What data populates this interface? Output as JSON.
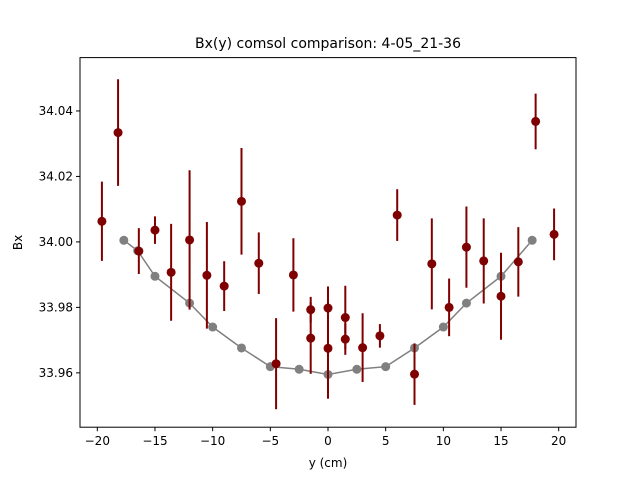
{
  "chart_data": {
    "type": "scatter",
    "title": "Bx(y) comsol comparison: 4-05_21-36",
    "xlabel": "y (cm)",
    "ylabel": "Bx",
    "xlim": [
      -21.5,
      21.5
    ],
    "ylim": [
      33.9434,
      34.0563
    ],
    "x_ticks": [
      -20,
      -15,
      -10,
      -5,
      0,
      5,
      10,
      15,
      20
    ],
    "x_tick_labels": [
      "−20",
      "−15",
      "−10",
      "−5",
      "0",
      "5",
      "10",
      "15",
      "20"
    ],
    "y_ticks": [
      33.96,
      33.98,
      34.0,
      34.02,
      34.04
    ],
    "y_tick_labels": [
      "33.96",
      "33.98",
      "34.00",
      "34.02",
      "34.04"
    ],
    "grid": false,
    "legend": "none",
    "series": [
      {
        "kind": "line-markers",
        "color": "#808080",
        "points": [
          {
            "x": -17.7,
            "y": 34.0005
          },
          {
            "x": -16.5,
            "y": 33.9973
          },
          {
            "x": -15.0,
            "y": 33.9895
          },
          {
            "x": -12.0,
            "y": 33.9813
          },
          {
            "x": -10.0,
            "y": 33.974
          },
          {
            "x": -7.5,
            "y": 33.9676
          },
          {
            "x": -5.0,
            "y": 33.9619
          },
          {
            "x": -2.5,
            "y": 33.9611
          },
          {
            "x": 0.0,
            "y": 33.9595
          },
          {
            "x": 2.5,
            "y": 33.9611
          },
          {
            "x": 5.0,
            "y": 33.9619
          },
          {
            "x": 7.5,
            "y": 33.9676
          },
          {
            "x": 10.0,
            "y": 33.974
          },
          {
            "x": 12.0,
            "y": 33.9813
          },
          {
            "x": 15.0,
            "y": 33.9895
          },
          {
            "x": 17.7,
            "y": 34.0005
          }
        ]
      },
      {
        "kind": "errorbar",
        "color": "#7f0000",
        "points": [
          {
            "x": -19.6,
            "y": 34.0063,
            "err": 0.0121
          },
          {
            "x": -18.2,
            "y": 34.0334,
            "err": 0.0163
          },
          {
            "x": -16.4,
            "y": 33.9972,
            "err": 0.007
          },
          {
            "x": -15.0,
            "y": 34.0036,
            "err": 0.0042
          },
          {
            "x": -13.6,
            "y": 33.9907,
            "err": 0.0148
          },
          {
            "x": -12.0,
            "y": 34.0006,
            "err": 0.0213
          },
          {
            "x": -10.5,
            "y": 33.9898,
            "err": 0.0163
          },
          {
            "x": -9.0,
            "y": 33.9865,
            "err": 0.0076
          },
          {
            "x": -7.5,
            "y": 34.0124,
            "err": 0.0163
          },
          {
            "x": -6.0,
            "y": 33.9935,
            "err": 0.0094
          },
          {
            "x": -3.0,
            "y": 33.9899,
            "err": 0.0112
          },
          {
            "x": -4.5,
            "y": 33.9628,
            "err": 0.0139
          },
          {
            "x": -1.5,
            "y": 33.9793,
            "err": 0.0039
          },
          {
            "x": -1.5,
            "y": 33.9706,
            "err": 0.0109
          },
          {
            "x": 0.0,
            "y": 33.9798,
            "err": 0.0066
          },
          {
            "x": 0.0,
            "y": 33.9675,
            "err": 0.0154
          },
          {
            "x": 1.5,
            "y": 33.9769,
            "err": 0.0097
          },
          {
            "x": 1.5,
            "y": 33.9703,
            "err": 0.0048
          },
          {
            "x": 3.0,
            "y": 33.9677,
            "err": 0.0105
          },
          {
            "x": 4.5,
            "y": 33.9713,
            "err": 0.0036
          },
          {
            "x": 6.0,
            "y": 34.0082,
            "err": 0.0079
          },
          {
            "x": 7.5,
            "y": 33.9596,
            "err": 0.0094
          },
          {
            "x": 9.0,
            "y": 33.9933,
            "err": 0.0139
          },
          {
            "x": 10.5,
            "y": 33.98,
            "err": 0.0088
          },
          {
            "x": 12.0,
            "y": 33.9984,
            "err": 0.0124
          },
          {
            "x": 13.5,
            "y": 33.9942,
            "err": 0.013
          },
          {
            "x": 15.0,
            "y": 33.9834,
            "err": 0.0133
          },
          {
            "x": 16.5,
            "y": 33.9939,
            "err": 0.0106
          },
          {
            "x": 18.0,
            "y": 34.0368,
            "err": 0.0085
          },
          {
            "x": 19.6,
            "y": 34.0023,
            "err": 0.0079
          }
        ]
      }
    ]
  }
}
